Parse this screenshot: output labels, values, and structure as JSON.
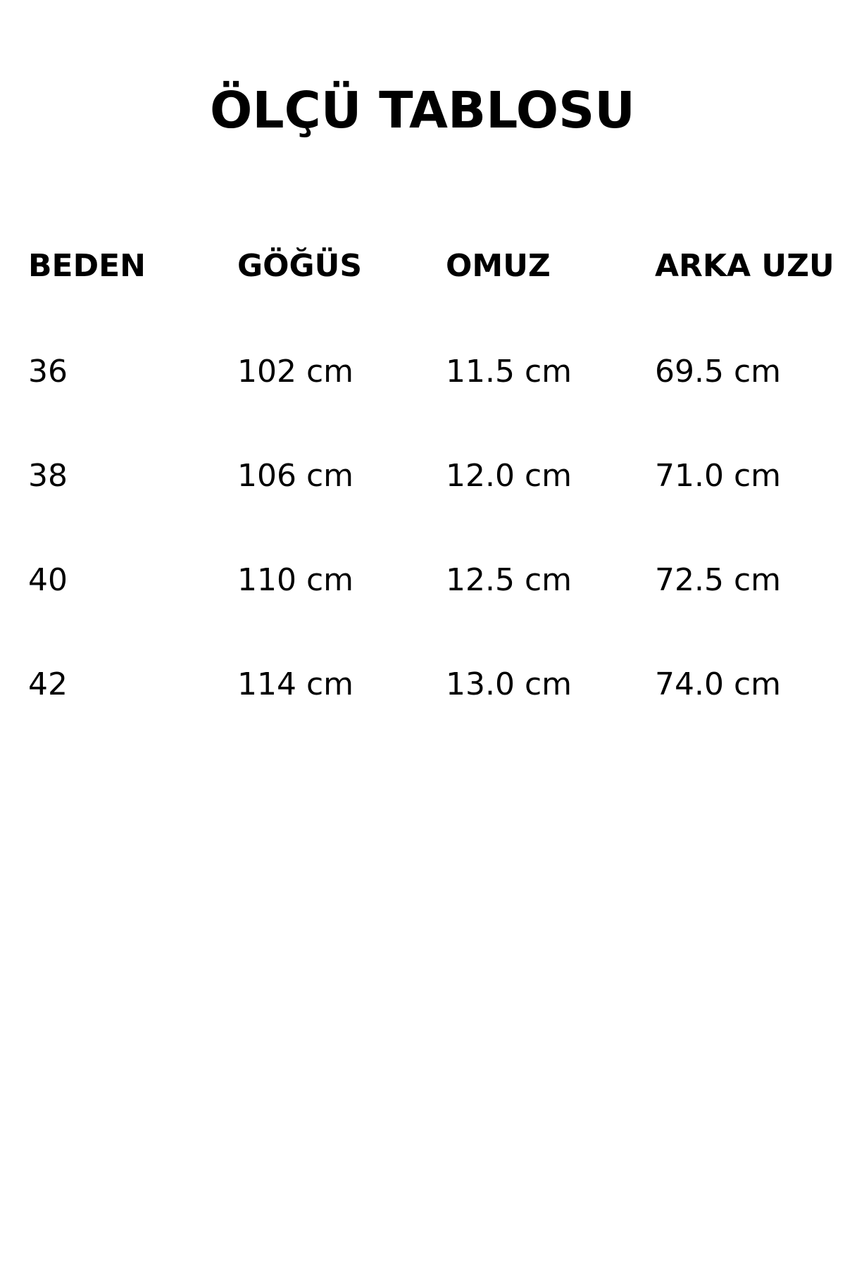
{
  "title": "ÖLÇÜ TABLOSU",
  "headers": [
    "BEDEN",
    "GÖĞÜS",
    "OMUZ",
    "ARKA UZU"
  ],
  "rows": [
    [
      "36",
      "102 cm",
      "11.5 cm",
      "69.5 cm"
    ],
    [
      "38",
      "106 cm",
      "12.0 cm",
      "71.0 cm"
    ],
    [
      "40",
      "110 cm",
      "12.5 cm",
      "72.5 cm"
    ],
    [
      "42",
      "114 cm",
      "13.0 cm",
      "74.0 cm"
    ]
  ]
}
